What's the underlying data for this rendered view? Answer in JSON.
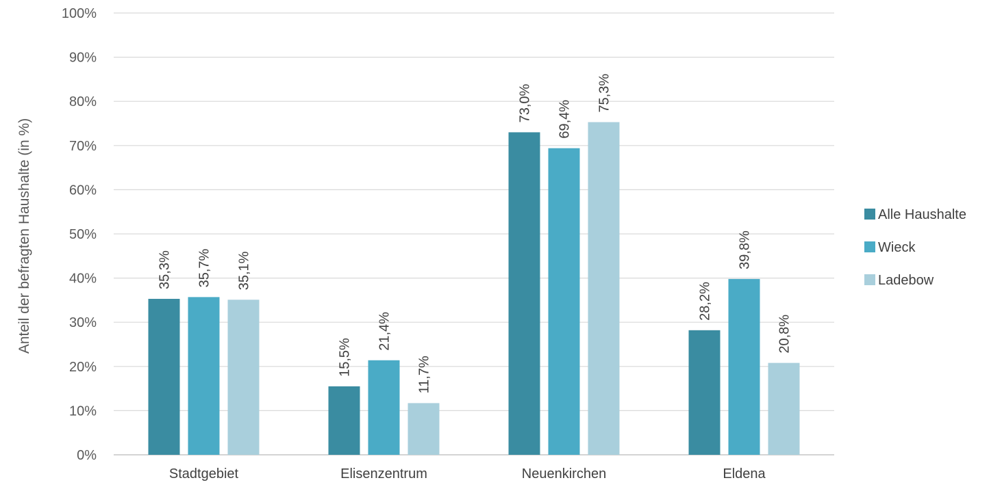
{
  "chart_data": {
    "type": "bar",
    "categories": [
      "Stadtgebiet",
      "Elisenzentrum",
      "Neuenkirchen",
      "Eldena"
    ],
    "series": [
      {
        "name": "Alle Haushalte",
        "color": "#3a8ca1",
        "values": [
          35.3,
          15.5,
          73.0,
          28.2
        ],
        "labels": [
          "35,3%",
          "15,5%",
          "73,0%",
          "28,2%"
        ]
      },
      {
        "name": "Wieck",
        "color": "#4aabc6",
        "values": [
          35.7,
          21.4,
          69.4,
          39.8
        ],
        "labels": [
          "35,7%",
          "21,4%",
          "69,4%",
          "39,8%"
        ]
      },
      {
        "name": "Ladebow",
        "color": "#a9cfdc",
        "values": [
          35.1,
          11.7,
          75.3,
          20.8
        ],
        "labels": [
          "35,1%",
          "11,7%",
          "75,3%",
          "20,8%"
        ]
      }
    ],
    "ylabel": "Anteil der befragten Haushalte (in %)",
    "xlabel": "",
    "ylim": [
      0,
      100
    ],
    "yticks": [
      0,
      10,
      20,
      30,
      40,
      50,
      60,
      70,
      80,
      90,
      100
    ],
    "ytick_labels": [
      "0%",
      "10%",
      "20%",
      "30%",
      "40%",
      "50%",
      "60%",
      "70%",
      "80%",
      "90%",
      "100%"
    ],
    "grid": true,
    "legend_position": "right",
    "gridline_color": "#d9d9d9"
  }
}
